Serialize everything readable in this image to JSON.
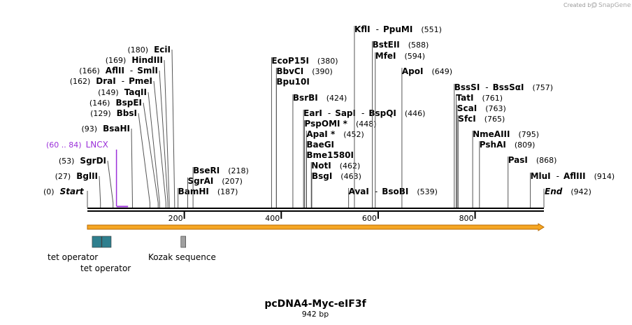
{
  "header": {
    "created_by": "Created by",
    "brand": "SnapGene",
    "brand_icon": "snapgene-logo-icon"
  },
  "map": {
    "title": "pcDNA4-Myc-eIF3f",
    "length_label": "942 bp",
    "length": 942,
    "ticks": [
      200,
      400,
      600,
      800
    ],
    "colors": {
      "backbone": "#000000",
      "site_line": "#555555",
      "primer": "#9b30d9",
      "orf_fill": "#f5a623",
      "orf_stroke": "#b96a00",
      "tet_operator": "#2f7f8e",
      "kozak": "#a0a0a0"
    },
    "primer": {
      "range_label": "(60 .. 84)",
      "name": "LNCX",
      "start": 60,
      "end": 84
    },
    "ends": {
      "start": {
        "pos": 0,
        "pos_label": "(0)",
        "name": "Start"
      },
      "end": {
        "pos": 942,
        "pos_label": "(942)",
        "name": "End"
      }
    },
    "sites_left": [
      {
        "pos": 27,
        "pos_label": "(27)",
        "name": "BglII"
      },
      {
        "pos": 53,
        "pos_label": "(53)",
        "name": "SgrDI"
      },
      {
        "pos": 93,
        "pos_label": "(93)",
        "name": "BsaHI"
      },
      {
        "pos": 129,
        "pos_label": "(129)",
        "name": "BbsI"
      },
      {
        "pos": 146,
        "pos_label": "(146)",
        "name": "BspEI"
      },
      {
        "pos": 149,
        "pos_label": "(149)",
        "name": "TaqII"
      },
      {
        "pos": 162,
        "pos_label": "(162)",
        "name": "DraI",
        "name2": "PmeI"
      },
      {
        "pos": 166,
        "pos_label": "(166)",
        "name": "AflII",
        "name2": "SmlI"
      },
      {
        "pos": 169,
        "pos_label": "(169)",
        "name": "HindIII"
      },
      {
        "pos": 180,
        "pos_label": "(180)",
        "name": "EciI"
      }
    ],
    "sites_right": [
      {
        "pos": 187,
        "pos_label": "(187)",
        "name": "BamHI"
      },
      {
        "pos": 207,
        "pos_label": "(207)",
        "name": "SgrAI"
      },
      {
        "pos": 218,
        "pos_label": "(218)",
        "name": "BseRI"
      },
      {
        "pos": 380,
        "pos_label": "(380)",
        "name": "EcoP15I"
      },
      {
        "pos": 390,
        "pos_label": "(390)",
        "name": "BbvCI"
      },
      {
        "pos": 390,
        "pos_label": "",
        "name": "Bpu10I"
      },
      {
        "pos": 424,
        "pos_label": "(424)",
        "name": "BsrBI"
      },
      {
        "pos": 446,
        "pos_label": "(446)",
        "name": "EarI",
        "name2": "SapI",
        "name3": "BspQI"
      },
      {
        "pos": 448,
        "pos_label": "(448)",
        "name": "PspOMI *"
      },
      {
        "pos": 452,
        "pos_label": "(452)",
        "name": "ApaI *"
      },
      {
        "pos": 452,
        "pos_label": "",
        "name": "BaeGI"
      },
      {
        "pos": 452,
        "pos_label": "",
        "name": "Bme1580I"
      },
      {
        "pos": 462,
        "pos_label": "(462)",
        "name": "NotI"
      },
      {
        "pos": 463,
        "pos_label": "(463)",
        "name": "BsgI"
      },
      {
        "pos": 539,
        "pos_label": "(539)",
        "name": "AvaI",
        "name2": "BsoBI"
      },
      {
        "pos": 551,
        "pos_label": "(551)",
        "name": "KflI",
        "name2": "PpuMI"
      },
      {
        "pos": 588,
        "pos_label": "(588)",
        "name": "BstEII"
      },
      {
        "pos": 594,
        "pos_label": "(594)",
        "name": "MfeI"
      },
      {
        "pos": 649,
        "pos_label": "(649)",
        "name": "ApoI"
      },
      {
        "pos": 757,
        "pos_label": "(757)",
        "name": "BssSI",
        "name2": "BssSαI"
      },
      {
        "pos": 761,
        "pos_label": "(761)",
        "name": "TatI"
      },
      {
        "pos": 763,
        "pos_label": "(763)",
        "name": "ScaI"
      },
      {
        "pos": 765,
        "pos_label": "(765)",
        "name": "SfcI"
      },
      {
        "pos": 795,
        "pos_label": "(795)",
        "name": "NmeAIII"
      },
      {
        "pos": 809,
        "pos_label": "(809)",
        "name": "PshAI"
      },
      {
        "pos": 868,
        "pos_label": "(868)",
        "name": "PasI"
      },
      {
        "pos": 914,
        "pos_label": "(914)",
        "name": "MluI",
        "name2": "AflIII"
      }
    ],
    "features": [
      {
        "name": "tet operator",
        "start": 10,
        "end": 29
      },
      {
        "name": "tet operator",
        "start": 30,
        "end": 49
      },
      {
        "name": "Kozak sequence",
        "start": 193,
        "end": 203
      }
    ],
    "orf": {
      "start": 0,
      "end": 942
    }
  }
}
